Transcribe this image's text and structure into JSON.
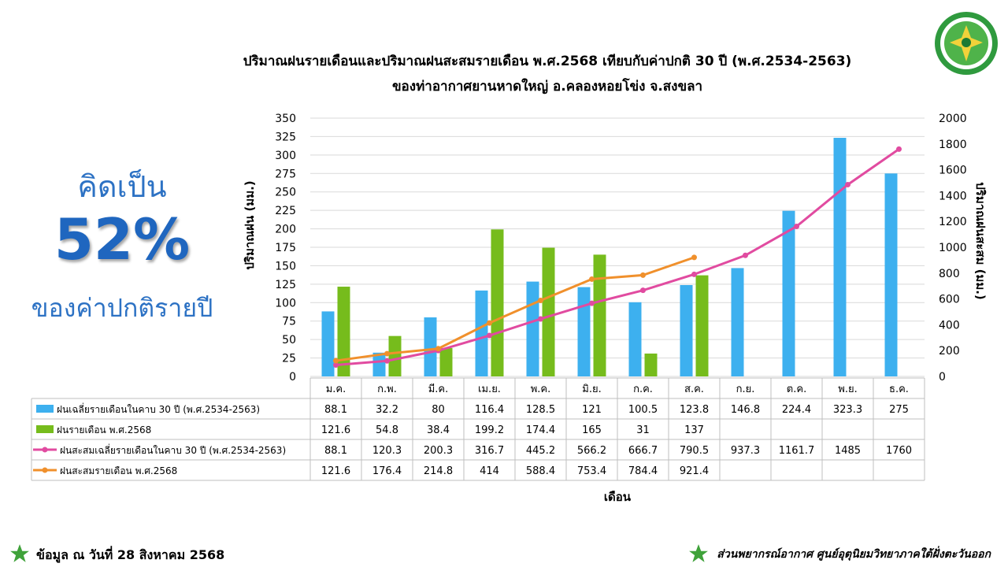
{
  "title_line1": "ปริมาณฝนรายเดือนและปริมาณฝนสะสมรายเดือน  พ.ศ.2568  เทียบกับค่าปกติ 30 ปี (พ.ศ.2534-2563)",
  "title_line2": "ของท่าอากาศยานหาดใหญ่  อ.คลองหอยโข่ง  จ.สงขลา",
  "side": {
    "line1": "คิดเป็น",
    "percent": "52%",
    "line3": "ของค่าปกติรายปี"
  },
  "footer": {
    "left": "ข้อมูล ณ วันที่ 28 สิงหาคม 2568",
    "right": "ส่วนพยากรณ์อากาศ ศูนย์อุตุนิยมวิทยาภาคใต้ฝั่งตะวันออก"
  },
  "icons": {
    "logo": "department-seal-icon",
    "star": "green-star-icon"
  },
  "colors": {
    "bar_normal": "#3db0ef",
    "bar_2568": "#76bc1c",
    "line_normal": "#e14ba0",
    "line_2568": "#f0902c"
  },
  "chart_data": {
    "type": "bar",
    "categories": [
      "ม.ค.",
      "ก.พ.",
      "มี.ค.",
      "เม.ย.",
      "พ.ค.",
      "มิ.ย.",
      "ก.ค.",
      "ส.ค.",
      "ก.ย.",
      "ต.ค.",
      "พ.ย.",
      "ธ.ค."
    ],
    "xlabel": "เดือน",
    "ylabel": "ปริมาณฝน (มม.)",
    "y2label": "ปริมาณฝนสะสม (มม.)",
    "ylim": [
      0,
      350
    ],
    "y2lim": [
      0,
      2000
    ],
    "yticks": [
      "0",
      "25",
      "50",
      "75",
      "100",
      "125",
      "150",
      "175",
      "200",
      "225",
      "250",
      "275",
      "300",
      "325",
      "350"
    ],
    "y2ticks": [
      "0",
      "200",
      "400",
      "600",
      "800",
      "1000",
      "1200",
      "1400",
      "1600",
      "1800",
      "2000"
    ],
    "grid": true,
    "series": [
      {
        "name": "ฝนเฉลี่ยรายเดือนในคาบ 30 ปี (พ.ศ.2534-2563)",
        "kind": "bar",
        "axis": "left",
        "values": [
          88.1,
          32.2,
          80,
          116.4,
          128.5,
          121,
          100.5,
          123.8,
          146.8,
          224.4,
          323.3,
          275
        ]
      },
      {
        "name": "ฝนรายเดือน พ.ศ.2568",
        "kind": "bar",
        "axis": "left",
        "values": [
          121.6,
          54.8,
          38.4,
          199.2,
          174.4,
          165,
          31,
          137,
          null,
          null,
          null,
          null
        ]
      },
      {
        "name": "ฝนสะสมเฉลี่ยรายเดือนในคาบ 30 ปี (พ.ศ.2534-2563)",
        "kind": "line",
        "axis": "right",
        "values": [
          88.1,
          120.3,
          200.3,
          316.7,
          445.2,
          566.2,
          666.7,
          790.5,
          937.3,
          1161.7,
          1485,
          1760
        ]
      },
      {
        "name": "ฝนสะสมรายเดือน พ.ศ.2568",
        "kind": "line",
        "axis": "right",
        "values": [
          121.6,
          176.4,
          214.8,
          414,
          588.4,
          753.4,
          784.4,
          921.4,
          null,
          null,
          null,
          null
        ]
      }
    ]
  }
}
